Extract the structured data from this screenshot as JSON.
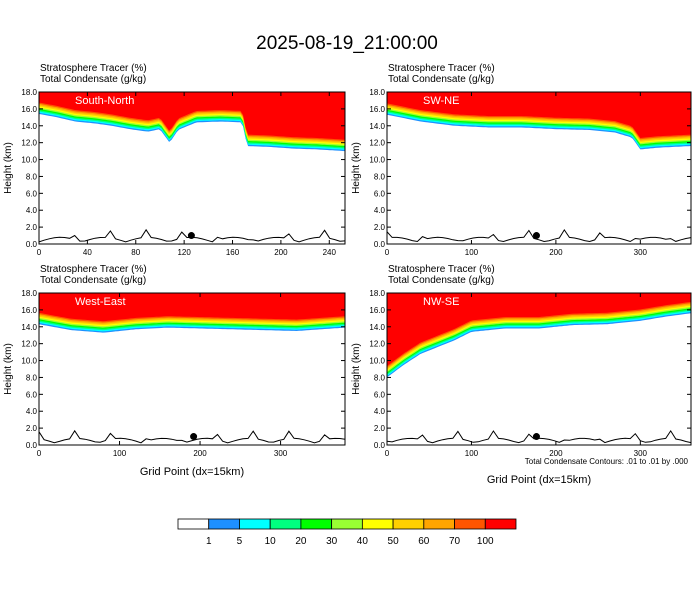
{
  "title": "2025-08-19_21:00:00",
  "colors": {
    "levels": [
      "#ffffff",
      "#1e90ff",
      "#00ffff",
      "#00ff80",
      "#00ff00",
      "#99ff33",
      "#ffff00",
      "#ffd000",
      "#ffa500",
      "#ff5500",
      "#ff0000"
    ],
    "contour": "#000000",
    "terrain": "#000000",
    "marker": "#000000"
  },
  "colorbar": {
    "labels": [
      "1",
      "5",
      "10",
      "20",
      "30",
      "40",
      "50",
      "60",
      "70",
      "100"
    ]
  },
  "contour_note": "Total Condensate Contours: .01 to .01 by .000",
  "chart_data": [
    {
      "type": "heatmap",
      "panel_label": "South-North",
      "header_line1": "Stratosphere Tracer    (%)",
      "header_line2": "Total Condensate    (g/kg)",
      "ylabel": "Height (km)",
      "xlabel": "",
      "xlim": [
        0,
        253
      ],
      "ylim": [
        0,
        18
      ],
      "xticks": [
        "0",
        "40",
        "80",
        "120",
        "160",
        "200",
        "240"
      ],
      "yticks": [
        "0.0",
        "2.0",
        "4.0",
        "6.0",
        "8.0",
        "10.0",
        "12.0",
        "14.0",
        "16.0",
        "18.0"
      ],
      "tracer_base_km": [
        [
          0,
          15.4
        ],
        [
          15,
          15.0
        ],
        [
          30,
          14.5
        ],
        [
          45,
          14.3
        ],
        [
          60,
          14.0
        ],
        [
          75,
          13.6
        ],
        [
          90,
          13.3
        ],
        [
          100,
          13.6
        ],
        [
          108,
          12.0
        ],
        [
          115,
          13.5
        ],
        [
          130,
          14.4
        ],
        [
          150,
          14.5
        ],
        [
          168,
          14.4
        ],
        [
          172,
          11.6
        ],
        [
          190,
          11.5
        ],
        [
          210,
          11.3
        ],
        [
          230,
          11.2
        ],
        [
          253,
          11.0
        ]
      ],
      "marker_x": 126,
      "marker_km": 1.0
    },
    {
      "type": "heatmap",
      "panel_label": "SW-NE",
      "header_line1": "Stratosphere Tracer    (%)",
      "header_line2": "Total Condensate    (g/kg)",
      "ylabel": "Height (km)",
      "xlabel": "",
      "xlim": [
        0,
        360
      ],
      "ylim": [
        0,
        18
      ],
      "xticks": [
        "0",
        "100",
        "200",
        "300"
      ],
      "yticks": [
        "0.0",
        "2.0",
        "4.0",
        "6.0",
        "8.0",
        "10.0",
        "12.0",
        "14.0",
        "16.0",
        "18.0"
      ],
      "tracer_base_km": [
        [
          0,
          15.3
        ],
        [
          40,
          14.5
        ],
        [
          80,
          14.0
        ],
        [
          120,
          13.8
        ],
        [
          160,
          13.8
        ],
        [
          200,
          13.6
        ],
        [
          240,
          13.5
        ],
        [
          270,
          13.2
        ],
        [
          290,
          12.6
        ],
        [
          300,
          11.2
        ],
        [
          320,
          11.4
        ],
        [
          360,
          11.6
        ]
      ],
      "marker_x": 177,
      "marker_km": 1.0
    },
    {
      "type": "heatmap",
      "panel_label": "West-East",
      "header_line1": "Stratosphere Tracer    (%)",
      "header_line2": "Total Condensate    (g/kg)",
      "ylabel": "Height (km)",
      "xlabel": "Grid Point (dx=15km)",
      "xlim": [
        0,
        380
      ],
      "ylim": [
        0,
        18
      ],
      "xticks": [
        "0",
        "100",
        "200",
        "300"
      ],
      "yticks": [
        "0.0",
        "2.0",
        "4.0",
        "6.0",
        "8.0",
        "10.0",
        "12.0",
        "14.0",
        "16.0",
        "18.0"
      ],
      "tracer_base_km": [
        [
          0,
          14.3
        ],
        [
          40,
          13.6
        ],
        [
          80,
          13.3
        ],
        [
          120,
          13.7
        ],
        [
          160,
          13.9
        ],
        [
          200,
          13.8
        ],
        [
          240,
          13.7
        ],
        [
          280,
          13.6
        ],
        [
          320,
          13.5
        ],
        [
          380,
          13.9
        ]
      ],
      "marker_x": 192,
      "marker_km": 1.0
    },
    {
      "type": "heatmap",
      "panel_label": "NW-SE",
      "header_line1": "Stratosphere Tracer    (%)",
      "header_line2": "Total Condensate    (g/kg)",
      "ylabel": "Height (km)",
      "xlabel": "Grid Point (dx=15km)",
      "xlim": [
        0,
        360
      ],
      "ylim": [
        0,
        18
      ],
      "xticks": [
        "0",
        "100",
        "200",
        "300"
      ],
      "yticks": [
        "0.0",
        "2.0",
        "4.0",
        "6.0",
        "8.0",
        "10.0",
        "12.0",
        "14.0",
        "16.0",
        "18.0"
      ],
      "tracer_base_km": [
        [
          0,
          8.0
        ],
        [
          20,
          9.5
        ],
        [
          40,
          10.8
        ],
        [
          60,
          11.6
        ],
        [
          80,
          12.4
        ],
        [
          100,
          13.4
        ],
        [
          140,
          13.8
        ],
        [
          180,
          13.8
        ],
        [
          220,
          14.2
        ],
        [
          260,
          14.3
        ],
        [
          300,
          14.7
        ],
        [
          330,
          15.2
        ],
        [
          360,
          15.6
        ]
      ],
      "marker_x": 177,
      "marker_km": 1.0
    }
  ]
}
